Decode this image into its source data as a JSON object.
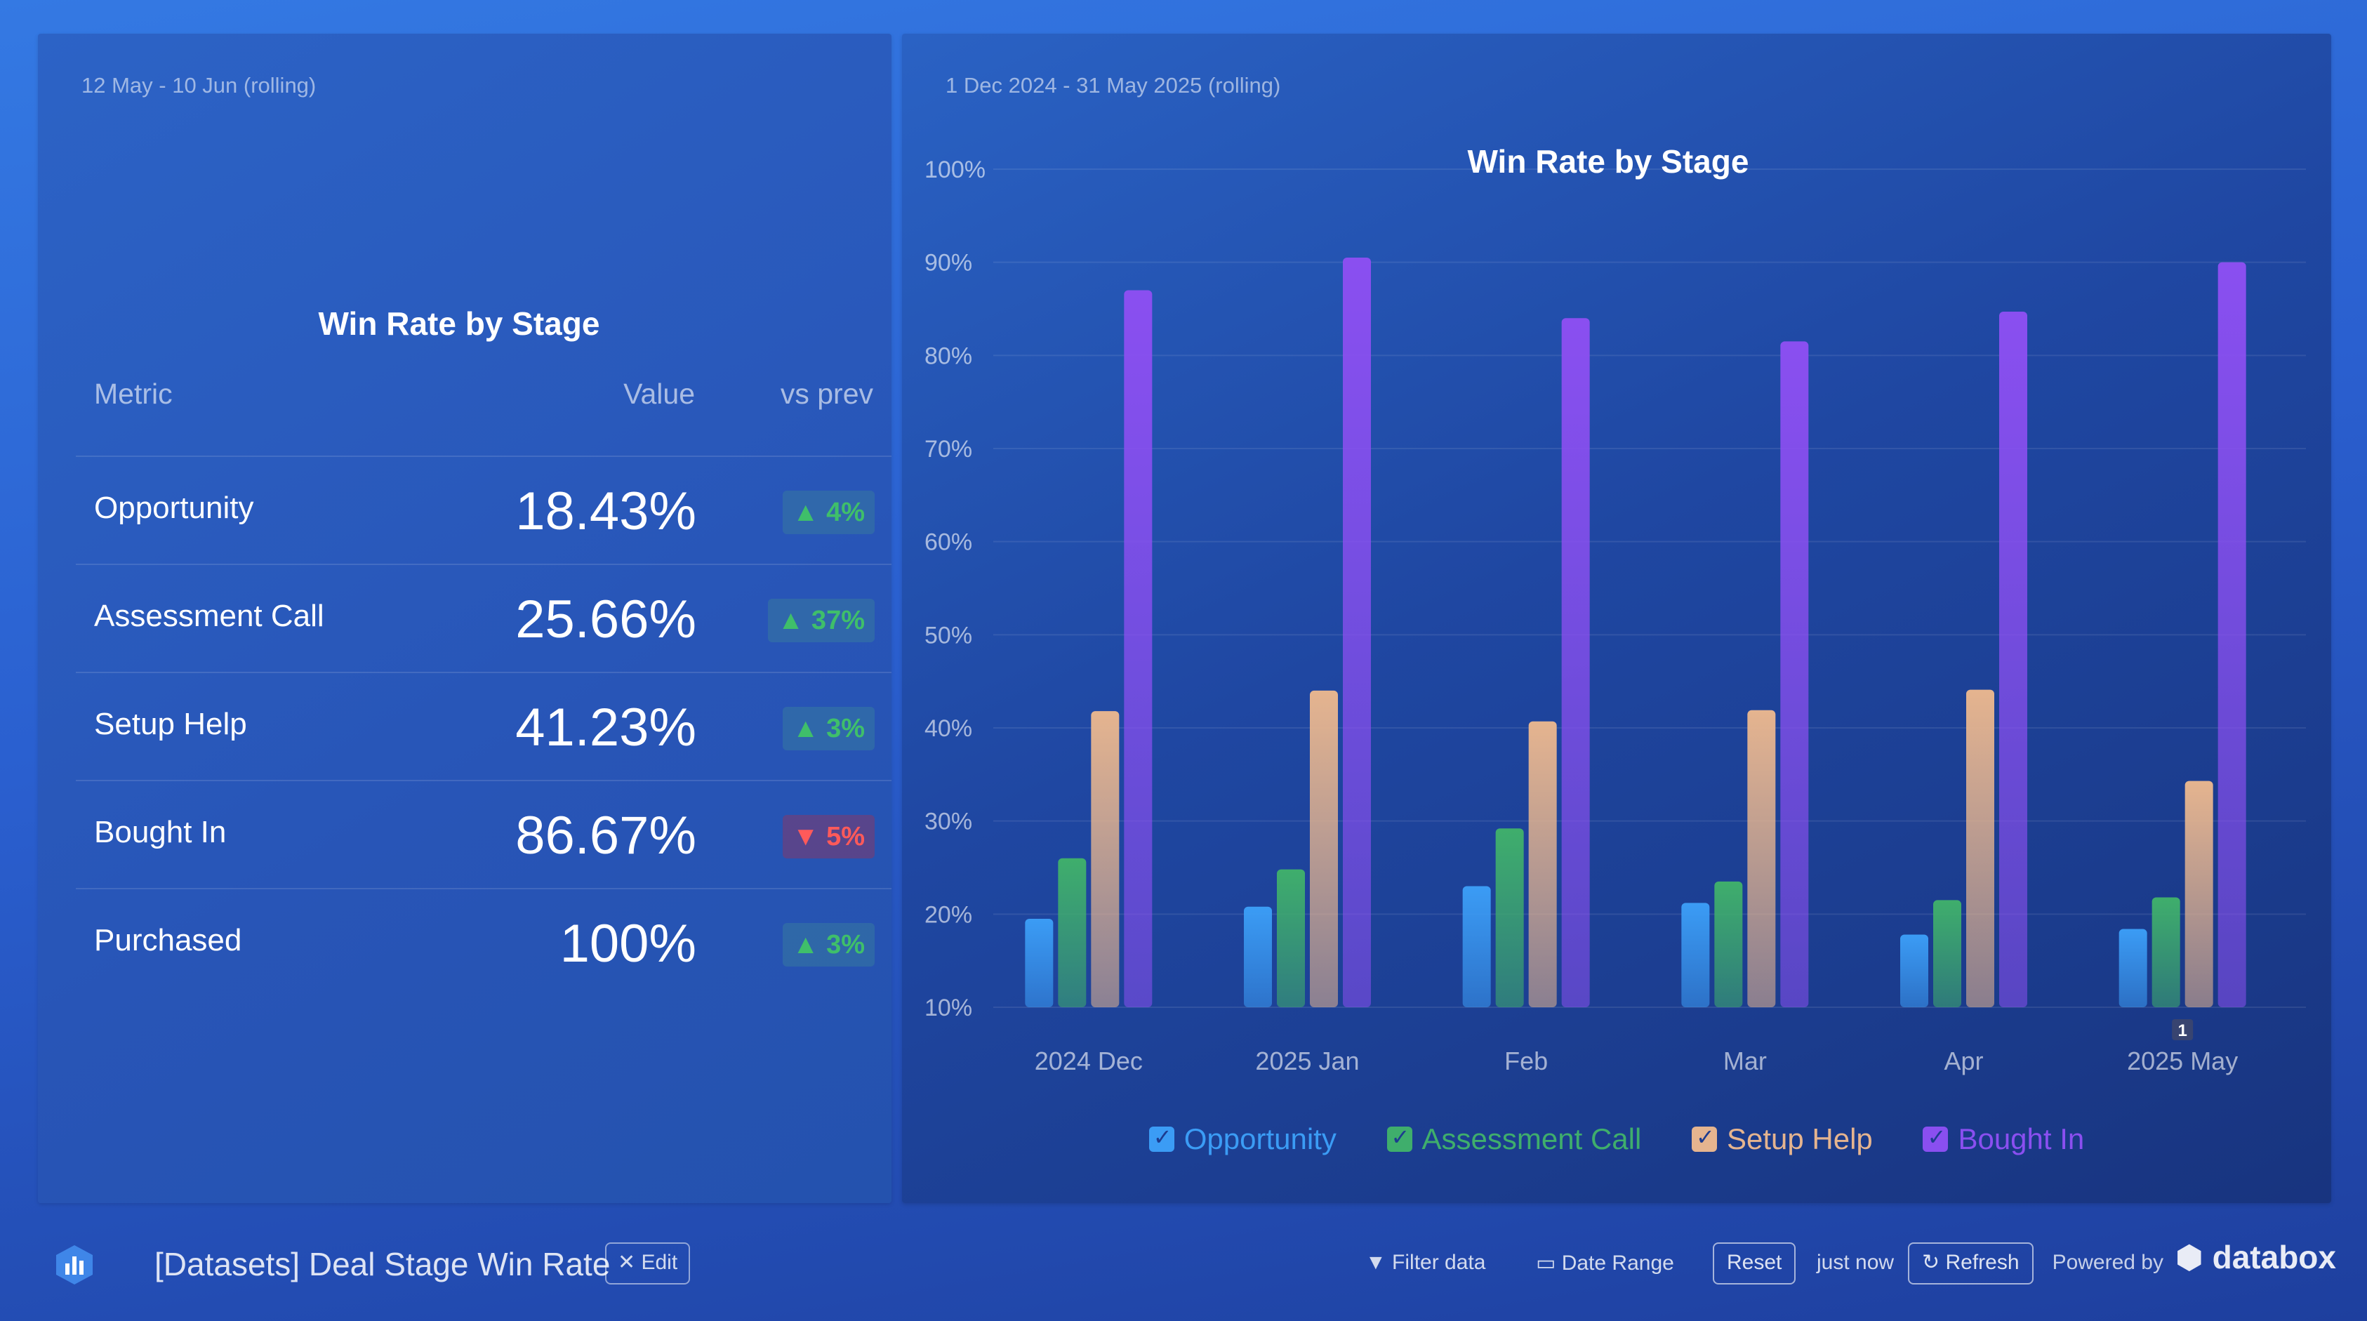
{
  "left_panel": {
    "date_range": "12 May - 10 Jun (rolling)",
    "title": "Win Rate by Stage",
    "headers": {
      "metric": "Metric",
      "value": "Value",
      "vs_prev": "vs prev"
    },
    "rows": [
      {
        "label": "Opportunity",
        "value": "18.43%",
        "change": "▲ 4%",
        "direction": "up"
      },
      {
        "label": "Assessment Call",
        "value": "25.66%",
        "change": "▲ 37%",
        "direction": "up"
      },
      {
        "label": "Setup Help",
        "value": "41.23%",
        "change": "▲ 3%",
        "direction": "up"
      },
      {
        "label": "Bought In",
        "value": "86.67%",
        "change": "▼ 5%",
        "direction": "down"
      },
      {
        "label": "Purchased",
        "value": "100%",
        "change": "▲ 3%",
        "direction": "up"
      }
    ]
  },
  "right_panel": {
    "date_range": "1 Dec 2024 - 31 May 2025 (rolling)"
  },
  "chart_data": {
    "type": "bar",
    "title": "Win Rate by Stage",
    "categories": [
      "2024 Dec",
      "2025 Jan",
      "Feb",
      "Mar",
      "Apr",
      "2025 May"
    ],
    "y_ticks": [
      "10%",
      "20%",
      "30%",
      "40%",
      "50%",
      "60%",
      "70%",
      "80%",
      "90%",
      "100%"
    ],
    "ylim": [
      10,
      100
    ],
    "grid": true,
    "legend_position": "bottom",
    "annotation": {
      "category": "2025 May",
      "text": "1"
    },
    "series": [
      {
        "name": "Opportunity",
        "color": "#3b9cf5",
        "values": [
          19.5,
          20.8,
          23.0,
          21.2,
          17.8,
          18.4
        ]
      },
      {
        "name": "Assessment Call",
        "color": "#3fae6c",
        "values": [
          26.0,
          24.8,
          29.2,
          23.5,
          21.5,
          21.8
        ]
      },
      {
        "name": "Setup Help",
        "color": "#e5b48f",
        "values": [
          41.8,
          44.0,
          40.7,
          41.9,
          44.1,
          34.3
        ]
      },
      {
        "name": "Bought In",
        "color": "#8a4ff0",
        "values": [
          87.0,
          90.5,
          84.0,
          81.5,
          84.7,
          90.0
        ]
      }
    ]
  },
  "footer": {
    "dashboard_title": "[Datasets] Deal Stage Win Rate",
    "edit_label": "Edit",
    "filter_label": "Filter data",
    "date_range_label": "Date Range",
    "reset_label": "Reset",
    "updated_label": "just now",
    "refresh_label": "Refresh",
    "powered_label": "Powered by",
    "brand": "databox"
  }
}
